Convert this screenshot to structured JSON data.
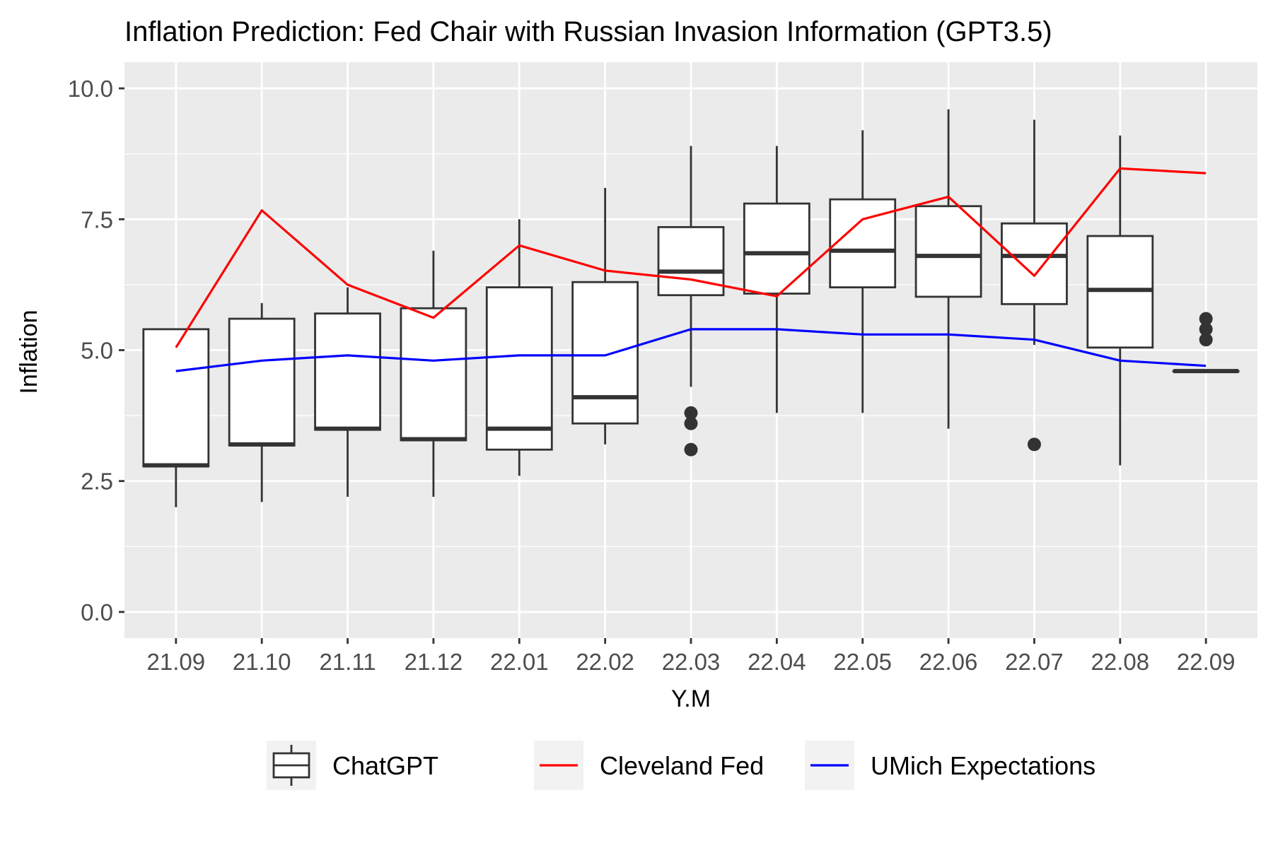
{
  "chart_data": {
    "type": "box+line",
    "title": "Inflation Prediction: Fed Chair with Russian Invasion Information (GPT3.5)",
    "xlabel": "Y.M",
    "ylabel": "Inflation",
    "ylim": [
      -0.5,
      10.5
    ],
    "yticks": [
      0.0,
      2.5,
      5.0,
      7.5,
      10.0
    ],
    "ytick_labels": [
      "0.0",
      "2.5",
      "5.0",
      "7.5",
      "10.0"
    ],
    "categories": [
      "21.09",
      "21.10",
      "21.11",
      "21.12",
      "22.01",
      "22.02",
      "22.03",
      "22.04",
      "22.05",
      "22.06",
      "22.07",
      "22.08",
      "22.09"
    ],
    "boxes": [
      {
        "name": "ChatGPT",
        "stats": [
          {
            "min": 2.0,
            "q1": 2.78,
            "median": 2.8,
            "q3": 5.4,
            "max": 5.4,
            "outliers": []
          },
          {
            "min": 2.1,
            "q1": 3.18,
            "median": 3.2,
            "q3": 5.6,
            "max": 5.9,
            "outliers": []
          },
          {
            "min": 2.2,
            "q1": 3.48,
            "median": 3.5,
            "q3": 5.7,
            "max": 6.2,
            "outliers": []
          },
          {
            "min": 2.2,
            "q1": 3.28,
            "median": 3.3,
            "q3": 5.8,
            "max": 6.9,
            "outliers": []
          },
          {
            "min": 2.6,
            "q1": 3.1,
            "median": 3.5,
            "q3": 6.2,
            "max": 7.5,
            "outliers": []
          },
          {
            "min": 3.2,
            "q1": 3.6,
            "median": 4.1,
            "q3": 6.3,
            "max": 8.1,
            "outliers": []
          },
          {
            "min": 4.3,
            "q1": 6.05,
            "median": 6.5,
            "q3": 7.35,
            "max": 8.9,
            "outliers": [
              3.8,
              3.6,
              3.1
            ]
          },
          {
            "min": 3.8,
            "q1": 6.08,
            "median": 6.85,
            "q3": 7.8,
            "max": 8.9,
            "outliers": []
          },
          {
            "min": 3.8,
            "q1": 6.2,
            "median": 6.9,
            "q3": 7.88,
            "max": 9.2,
            "outliers": []
          },
          {
            "min": 3.5,
            "q1": 6.02,
            "median": 6.8,
            "q3": 7.75,
            "max": 9.6,
            "outliers": []
          },
          {
            "min": 5.1,
            "q1": 5.88,
            "median": 6.8,
            "q3": 7.42,
            "max": 9.4,
            "outliers": [
              3.2
            ]
          },
          {
            "min": 2.8,
            "q1": 5.05,
            "median": 6.15,
            "q3": 7.18,
            "max": 9.1,
            "outliers": []
          },
          {
            "min": 4.6,
            "q1": 4.6,
            "median": 4.6,
            "q3": 4.6,
            "max": 4.6,
            "outliers": [
              5.6,
              5.4,
              5.2
            ]
          }
        ]
      }
    ],
    "series": [
      {
        "name": "Cleveland Fed",
        "color": "#ff0000",
        "values": [
          5.05,
          7.67,
          6.25,
          5.62,
          7.0,
          6.52,
          6.35,
          6.03,
          7.5,
          7.93,
          6.42,
          8.47,
          8.38
        ]
      },
      {
        "name": "UMich Expectations",
        "color": "#0000ff",
        "values": [
          4.6,
          4.8,
          4.9,
          4.8,
          4.9,
          4.9,
          5.4,
          5.4,
          5.3,
          5.3,
          5.2,
          4.8,
          4.7
        ]
      }
    ],
    "legend": {
      "position": "bottom",
      "items": [
        {
          "label": "ChatGPT",
          "kind": "box"
        },
        {
          "label": "Cleveland Fed",
          "kind": "line",
          "color": "#ff0000"
        },
        {
          "label": "UMich Expectations",
          "kind": "line",
          "color": "#0000ff"
        }
      ]
    },
    "panel_background": "#ebebeb",
    "grid": true
  }
}
